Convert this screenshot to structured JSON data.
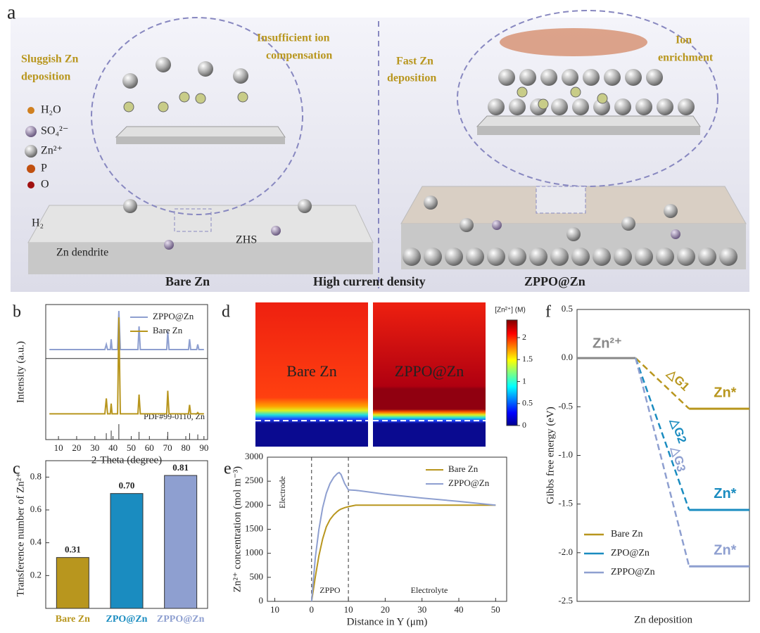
{
  "schematic": {
    "label": "a",
    "annotations": [
      [
        "Sluggish Zn",
        "deposition"
      ],
      [
        "Insufficient ion",
        "compensation"
      ],
      [
        "Fast Zn",
        "deposition"
      ],
      [
        "Ion",
        "enrichment"
      ]
    ],
    "legend": [
      "H₂O",
      "SO₄²⁻",
      "Zn²⁺",
      "P",
      "O"
    ],
    "surface_labels": [
      "H₂",
      "Zn dendrite",
      "ZHS"
    ],
    "bottom_labels": [
      "Bare Zn",
      "High current density",
      "ZPPO@Zn"
    ]
  },
  "chart_data": [
    {
      "panel": "b",
      "type": "line",
      "y_label": "Intensity (a.u.)",
      "x_label": "2-Theta (degree)",
      "x": [
        5,
        35.5,
        36.3,
        37,
        38.5,
        39,
        39.5,
        42.5,
        43.2,
        44,
        53.7,
        54.3,
        55,
        69.5,
        70.1,
        70.8,
        81.5,
        82.1,
        82.7,
        86,
        86.6,
        87.2,
        90
      ],
      "series": [
        {
          "name": "ZPPO@Zn",
          "color": "#8e9fd0",
          "values": [
            70,
            70,
            74,
            70,
            70,
            78,
            70,
            70,
            100,
            70,
            70,
            88,
            70,
            70,
            84,
            70,
            70,
            78,
            70,
            70,
            74,
            70,
            70
          ]
        },
        {
          "name": "Bare Zn",
          "color": "#b8961e",
          "values": [
            20,
            20,
            32,
            20,
            20,
            28,
            20,
            20,
            95,
            20,
            20,
            35,
            20,
            20,
            38,
            20,
            20,
            27,
            20,
            20,
            21,
            20,
            20
          ]
        }
      ],
      "reference": {
        "label": "PDF#99-0110, Zn",
        "x": [
          36.3,
          39,
          43.2,
          54.3,
          70.1,
          82.1,
          86.6
        ],
        "values": [
          5,
          7,
          12,
          6,
          6,
          5,
          4
        ]
      },
      "xlim": [
        3,
        92
      ],
      "xticks": [
        10,
        20,
        30,
        40,
        50,
        60,
        70,
        80,
        90
      ],
      "ylim": [
        0,
        105
      ]
    },
    {
      "panel": "c",
      "type": "bar",
      "y_label": "Transference number of Zn²⁺",
      "categories": [
        "Bare Zn",
        "ZPO@Zn",
        "ZPPO@Zn"
      ],
      "values": [
        0.31,
        0.7,
        0.81
      ],
      "value_labels": [
        "0.31",
        "0.70",
        "0.81"
      ],
      "colors": [
        "#b8961e",
        "#1a8cc0",
        "#8e9fd0"
      ],
      "ylim": [
        0,
        0.9
      ],
      "yticks": [
        0.2,
        0.4,
        0.6,
        0.8
      ]
    },
    {
      "panel": "d",
      "type": "heatmap",
      "panels": [
        "Bare Zn",
        "ZPPO@Zn"
      ],
      "colorbar_label": "[Zn²⁺] (M)",
      "clim": [
        0,
        2.4
      ],
      "cticks": [
        0,
        0.5,
        1,
        1.5,
        2
      ]
    },
    {
      "panel": "e",
      "type": "line",
      "y_label": "Zn²⁺ concentration (mol m⁻³)",
      "x_label": "Distance in Y (μm)",
      "x": [
        0,
        1,
        2,
        3,
        4,
        5,
        6,
        7,
        7.5,
        8,
        9,
        10,
        12,
        20,
        30,
        40,
        50
      ],
      "series": [
        {
          "name": "Bare Zn",
          "color": "#b8961e",
          "values": [
            0,
            500,
            950,
            1300,
            1550,
            1700,
            1800,
            1870,
            1900,
            1920,
            1950,
            1970,
            2000,
            2000,
            2000,
            2000,
            2000
          ]
        },
        {
          "name": "ZPPO@Zn",
          "color": "#8e9fd0",
          "values": [
            0,
            900,
            1500,
            1950,
            2250,
            2450,
            2580,
            2660,
            2680,
            2640,
            2450,
            2320,
            2310,
            2230,
            2150,
            2080,
            2000
          ]
        }
      ],
      "vlines": [
        0,
        10
      ],
      "regions": [
        "Electrode",
        "ZPPO",
        "Electrolyte"
      ],
      "xlim": [
        -12,
        53
      ],
      "xticks": [
        {
          "value": -10,
          "label": "10"
        },
        0,
        10,
        20,
        30,
        40,
        50
      ],
      "ylim": [
        0,
        3000
      ],
      "yticks": [
        0,
        500,
        1000,
        1500,
        2000,
        2500,
        3000
      ]
    },
    {
      "panel": "f",
      "type": "energy",
      "y_label": "Gibbs free energy (eV)",
      "x_label": "Zn deposition",
      "start": {
        "label": "Zn²⁺",
        "value": 0,
        "color": "#888888"
      },
      "series": [
        {
          "name": "Bare Zn",
          "color": "#b8961e",
          "value": -0.52,
          "label": "Zn*",
          "gap_label": "△G1"
        },
        {
          "name": "ZPO@Zn",
          "color": "#1a8cc0",
          "value": -1.56,
          "label": "Zn*",
          "gap_label": "△G2"
        },
        {
          "name": "ZPPO@Zn",
          "color": "#8e9fd0",
          "value": -2.14,
          "label": "Zn*",
          "gap_label": "△G3"
        }
      ],
      "ylim": [
        -2.5,
        0.5
      ],
      "yticks": [
        {
          "value": -2.5,
          "label": "-2.5"
        },
        {
          "value": -2,
          "label": "-2.0"
        },
        {
          "value": -1.5,
          "label": "-1.5"
        },
        {
          "value": -1,
          "label": "-1.0"
        },
        {
          "value": -0.5,
          "label": "-0.5"
        },
        {
          "value": 0,
          "label": "0.0"
        },
        0.5
      ]
    }
  ]
}
